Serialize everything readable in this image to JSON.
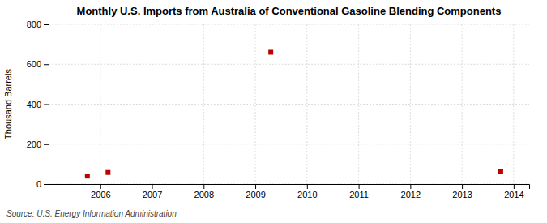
{
  "chart_data": {
    "type": "scatter",
    "title": "Monthly U.S. Imports from Australia of Conventional Gasoline Blending Components",
    "ylabel": "Thousand Barrels",
    "annotation": "Source: U.S. Energy Information Administration",
    "x": [
      2005.75,
      2006.15,
      2009.3,
      2013.75
    ],
    "values": [
      40,
      58,
      660,
      65
    ],
    "color": "#bb0000",
    "marker": "square",
    "xlim": [
      2005.0,
      2014.3
    ],
    "ylim": [
      0,
      800
    ],
    "xticks": [
      2006,
      2007,
      2008,
      2009,
      2010,
      2011,
      2012,
      2013,
      2014
    ],
    "yticks": [
      0,
      200,
      400,
      600,
      800
    ],
    "grid": true
  }
}
